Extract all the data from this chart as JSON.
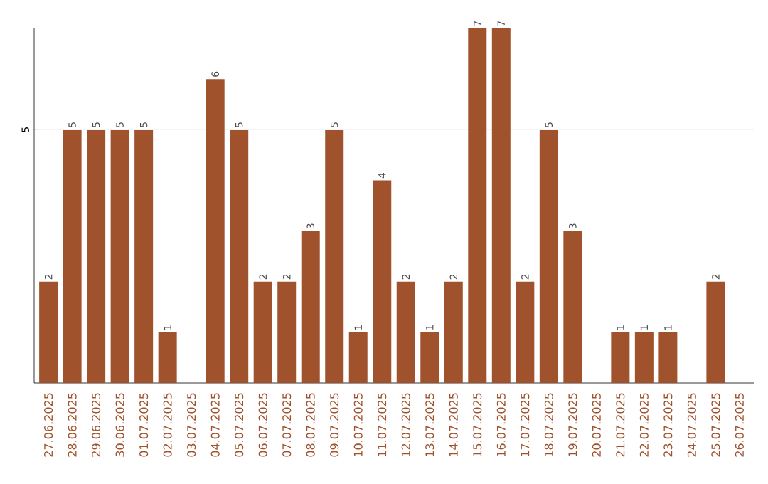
{
  "chart_data": {
    "type": "bar",
    "categories": [
      "27.06.2025",
      "28.06.2025",
      "29.06.2025",
      "30.06.2025",
      "01.07.2025",
      "02.07.2025",
      "03.07.2025",
      "04.07.2025",
      "05.07.2025",
      "06.07.2025",
      "07.07.2025",
      "08.07.2025",
      "09.07.2025",
      "10.07.2025",
      "11.07.2025",
      "12.07.2025",
      "13.07.2025",
      "14.07.2025",
      "15.07.2025",
      "16.07.2025",
      "17.07.2025",
      "18.07.2025",
      "19.07.2025",
      "20.07.2025",
      "21.07.2025",
      "22.07.2025",
      "23.07.2025",
      "24.07.2025",
      "25.07.2025",
      "26.07.2025"
    ],
    "values": [
      2,
      5,
      5,
      5,
      5,
      1,
      null,
      6,
      5,
      2,
      2,
      3,
      5,
      1,
      4,
      2,
      1,
      2,
      7,
      7,
      2,
      5,
      3,
      null,
      1,
      1,
      1,
      null,
      2,
      null
    ],
    "color": "#a0522d",
    "ylim": [
      0,
      7
    ],
    "yticks": [
      5
    ],
    "grid": "y",
    "data_labels": true
  }
}
